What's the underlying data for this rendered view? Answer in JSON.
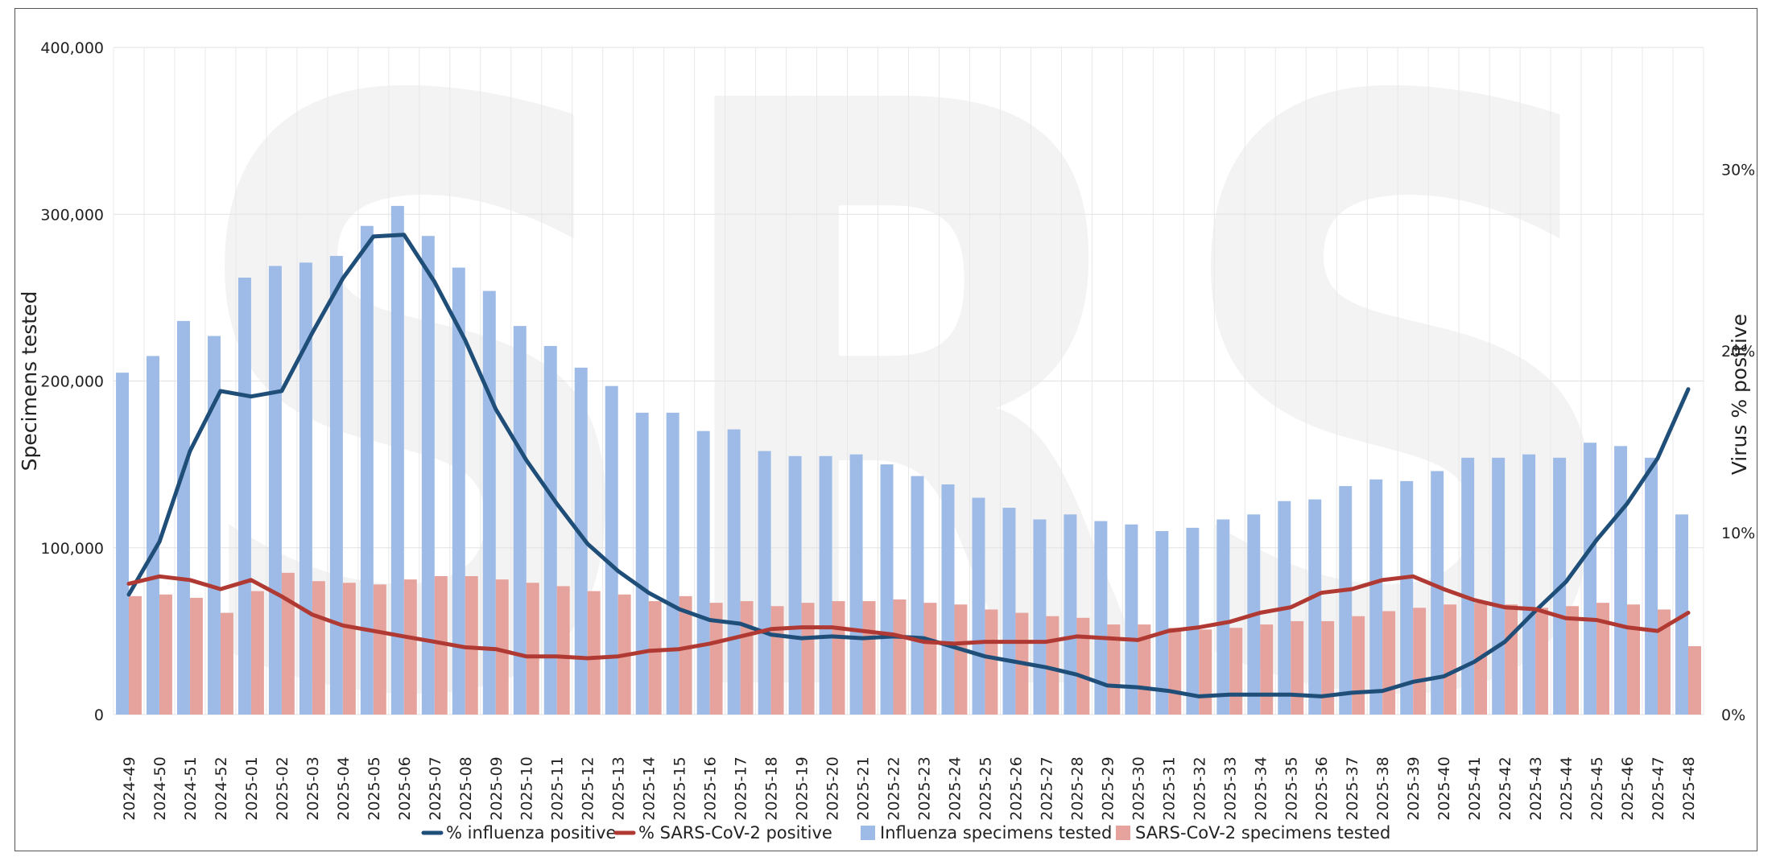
{
  "chart_data": {
    "type": "bar",
    "title": "",
    "watermark": "SRS",
    "categories": [
      "2024-49",
      "2024-50",
      "2024-51",
      "2024-52",
      "2025-01",
      "2025-02",
      "2025-03",
      "2025-04",
      "2025-05",
      "2025-06",
      "2025-07",
      "2025-08",
      "2025-09",
      "2025-10",
      "2025-11",
      "2025-12",
      "2025-13",
      "2025-14",
      "2025-15",
      "2025-16",
      "2025-17",
      "2025-18",
      "2025-19",
      "2025-20",
      "2025-21",
      "2025-22",
      "2025-23",
      "2025-24",
      "2025-25",
      "2025-26",
      "2025-27",
      "2025-28",
      "2025-29",
      "2025-30",
      "2025-31",
      "2025-32",
      "2025-33",
      "2025-34",
      "2025-35",
      "2025-36",
      "2025-37",
      "2025-38",
      "2025-39",
      "2025-40",
      "2025-41",
      "2025-42",
      "2025-43",
      "2025-44",
      "2025-45",
      "2025-46",
      "2025-47",
      "2025-48"
    ],
    "ylabel": "Specimens tested",
    "y2label": "Virus % positive",
    "ylim": [
      0,
      400000
    ],
    "y2lim": [
      0,
      36.7
    ],
    "yticks": [
      "0",
      "100,000",
      "200,000",
      "300,000",
      "400,000"
    ],
    "yticks_values": [
      0,
      100000,
      200000,
      300000,
      400000
    ],
    "y2ticks": [
      "0%",
      "10%",
      "20%",
      "30%"
    ],
    "y2ticks_values": [
      0,
      10,
      20,
      30
    ],
    "series": [
      {
        "name": "Influenza specimens tested",
        "kind": "bar",
        "axis": "left",
        "color": "#9dbbe6",
        "values": [
          205000,
          215000,
          236000,
          227000,
          262000,
          269000,
          271000,
          275000,
          293000,
          305000,
          287000,
          268000,
          254000,
          233000,
          221000,
          208000,
          197000,
          181000,
          181000,
          170000,
          171000,
          158000,
          155000,
          155000,
          156000,
          150000,
          143000,
          138000,
          130000,
          124000,
          117000,
          120000,
          116000,
          114000,
          110000,
          112000,
          117000,
          120000,
          128000,
          129000,
          137000,
          141000,
          140000,
          146000,
          154000,
          154000,
          156000,
          154000,
          163000,
          161000,
          154000,
          120000
        ]
      },
      {
        "name": "SARS-CoV-2 specimens tested",
        "kind": "bar",
        "axis": "left",
        "color": "#e6a29c",
        "values": [
          71000,
          72000,
          70000,
          61000,
          74000,
          85000,
          80000,
          79000,
          78000,
          81000,
          83000,
          83000,
          81000,
          79000,
          77000,
          74000,
          72000,
          68000,
          71000,
          67000,
          68000,
          65000,
          67000,
          68000,
          68000,
          69000,
          67000,
          66000,
          63000,
          61000,
          59000,
          58000,
          54000,
          54000,
          52000,
          51000,
          52000,
          54000,
          56000,
          56000,
          59000,
          62000,
          64000,
          66000,
          67000,
          66000,
          64000,
          65000,
          67000,
          66000,
          63000,
          41000
        ]
      },
      {
        "name": "% influenza positive",
        "kind": "line",
        "axis": "right",
        "color": "#1f4e79",
        "values": [
          6.6,
          9.5,
          14.5,
          17.8,
          17.5,
          17.8,
          21.0,
          24.0,
          26.3,
          26.4,
          23.8,
          20.6,
          16.8,
          14.0,
          11.6,
          9.4,
          7.9,
          6.7,
          5.8,
          5.2,
          5.0,
          4.4,
          4.2,
          4.3,
          4.2,
          4.3,
          4.2,
          3.7,
          3.2,
          2.9,
          2.6,
          2.2,
          1.6,
          1.5,
          1.3,
          1.0,
          1.1,
          1.1,
          1.1,
          1.0,
          1.2,
          1.3,
          1.8,
          2.1,
          2.9,
          4.0,
          5.7,
          7.3,
          9.6,
          11.6,
          14.1,
          17.9
        ]
      },
      {
        "name": "% SARS-CoV-2 positive",
        "kind": "line",
        "axis": "right",
        "color": "#b03a33",
        "values": [
          7.2,
          7.6,
          7.4,
          6.9,
          7.4,
          6.5,
          5.5,
          4.9,
          4.6,
          4.3,
          4.0,
          3.7,
          3.6,
          3.2,
          3.2,
          3.1,
          3.2,
          3.5,
          3.6,
          3.9,
          4.3,
          4.7,
          4.8,
          4.8,
          4.6,
          4.4,
          4.0,
          3.9,
          4.0,
          4.0,
          4.0,
          4.3,
          4.2,
          4.1,
          4.6,
          4.8,
          5.1,
          5.6,
          5.9,
          6.7,
          6.9,
          7.4,
          7.6,
          6.9,
          6.3,
          5.9,
          5.8,
          5.3,
          5.2,
          4.8,
          4.6,
          5.6
        ]
      }
    ],
    "legend": {
      "placement": "bottom",
      "items": [
        "% influenza positive",
        "% SARS-CoV-2 positive",
        "Influenza specimens tested",
        "SARS-CoV-2 specimens tested"
      ]
    },
    "grid": true
  }
}
